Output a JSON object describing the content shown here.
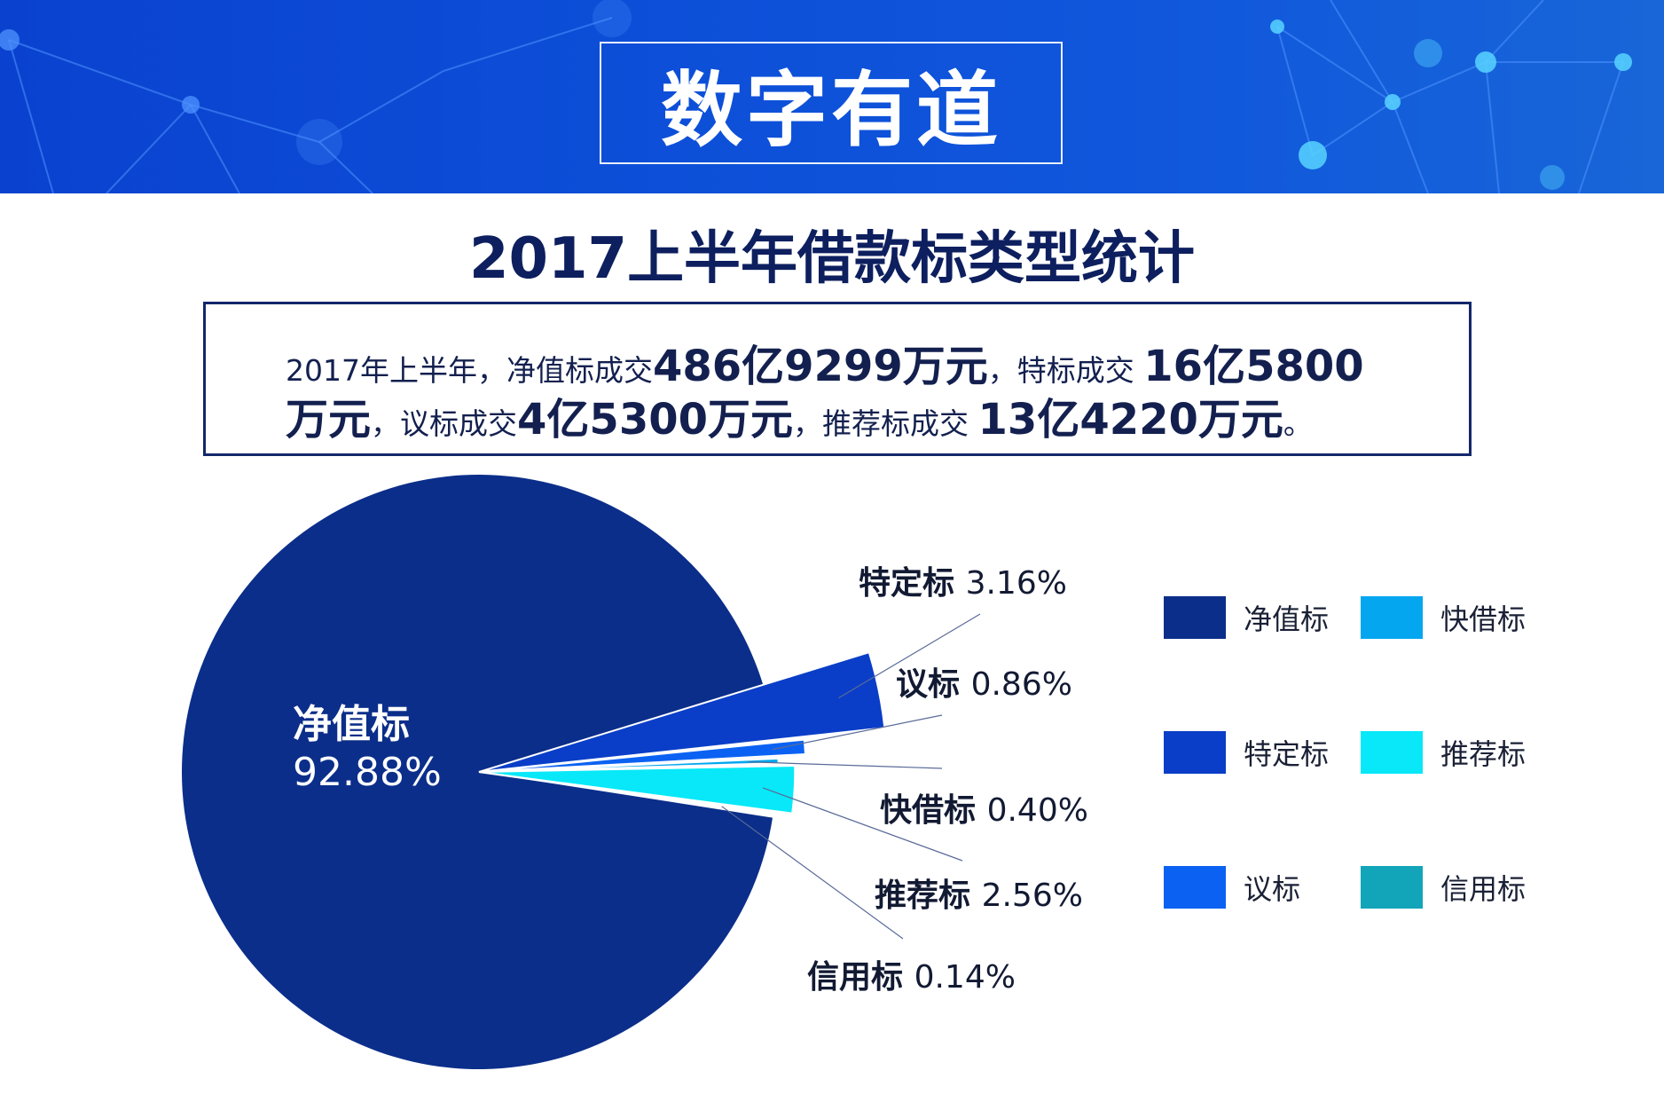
{
  "banner": {
    "title": "数字有道"
  },
  "summary": {
    "p1": "2017年上半年，净值标成交",
    "v1": "486亿9299万元",
    "p2": "，特标成交 ",
    "v2": "16亿5800",
    "v3": "万元",
    "p3": "，议标成交",
    "v4": "4亿5300万元",
    "p4": "，推荐标成交 ",
    "v5": "13亿4220万元",
    "p5": "。"
  },
  "chart_data": {
    "type": "pie",
    "title": "2017上半年借款标类型统计",
    "slices": [
      {
        "name": "净值标",
        "percent": 92.88,
        "label": "92.88%",
        "color": "#0b2e8a"
      },
      {
        "name": "特定标",
        "percent": 3.16,
        "label": "3.16%",
        "color": "#0a3ec8"
      },
      {
        "name": "议标",
        "percent": 0.86,
        "label": "0.86%",
        "color": "#0b62f2"
      },
      {
        "name": "快借标",
        "percent": 0.4,
        "label": "0.40%",
        "color": "#03a6ef"
      },
      {
        "name": "推荐标",
        "percent": 2.56,
        "label": "2.56%",
        "color": "#08e8f8"
      },
      {
        "name": "信用标",
        "percent": 0.14,
        "label": "0.14%",
        "color": "#12a5ba"
      }
    ],
    "legend": [
      {
        "name": "净值标",
        "color": "#0b2e8a"
      },
      {
        "name": "快借标",
        "color": "#03a6ef"
      },
      {
        "name": "特定标",
        "color": "#0a3ec8"
      },
      {
        "name": "推荐标",
        "color": "#08e8f8"
      },
      {
        "name": "议标",
        "color": "#0b62f2"
      },
      {
        "name": "信用标",
        "color": "#12a5ba"
      }
    ],
    "legend_position": "right"
  }
}
